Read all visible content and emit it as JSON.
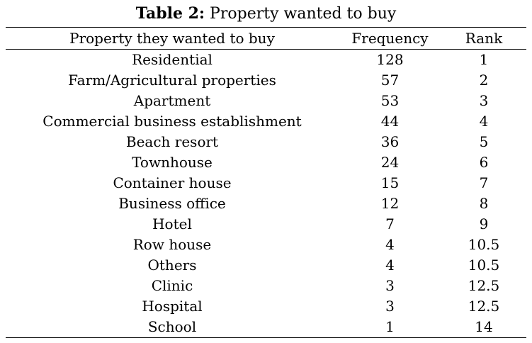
{
  "caption": {
    "label": "Table 2:",
    "title": "Property wanted to buy"
  },
  "columns": [
    "Property they wanted to buy",
    "Frequency",
    "Rank"
  ],
  "rows": [
    {
      "property": "Residential",
      "frequency": "128",
      "rank": "1"
    },
    {
      "property": "Farm/Agricultural properties",
      "frequency": "57",
      "rank": "2"
    },
    {
      "property": "Apartment",
      "frequency": "53",
      "rank": "3"
    },
    {
      "property": "Commercial business establishment",
      "frequency": "44",
      "rank": "4"
    },
    {
      "property": "Beach resort",
      "frequency": "36",
      "rank": "5"
    },
    {
      "property": "Townhouse",
      "frequency": "24",
      "rank": "6"
    },
    {
      "property": "Container house",
      "frequency": "15",
      "rank": "7"
    },
    {
      "property": "Business office",
      "frequency": "12",
      "rank": "8"
    },
    {
      "property": "Hotel",
      "frequency": "7",
      "rank": "9"
    },
    {
      "property": "Row house",
      "frequency": "4",
      "rank": "10.5"
    },
    {
      "property": "Others",
      "frequency": "4",
      "rank": "10.5"
    },
    {
      "property": "Clinic",
      "frequency": "3",
      "rank": "12.5"
    },
    {
      "property": "Hospital",
      "frequency": "3",
      "rank": "12.5"
    },
    {
      "property": "School",
      "frequency": "1",
      "rank": "14"
    }
  ]
}
